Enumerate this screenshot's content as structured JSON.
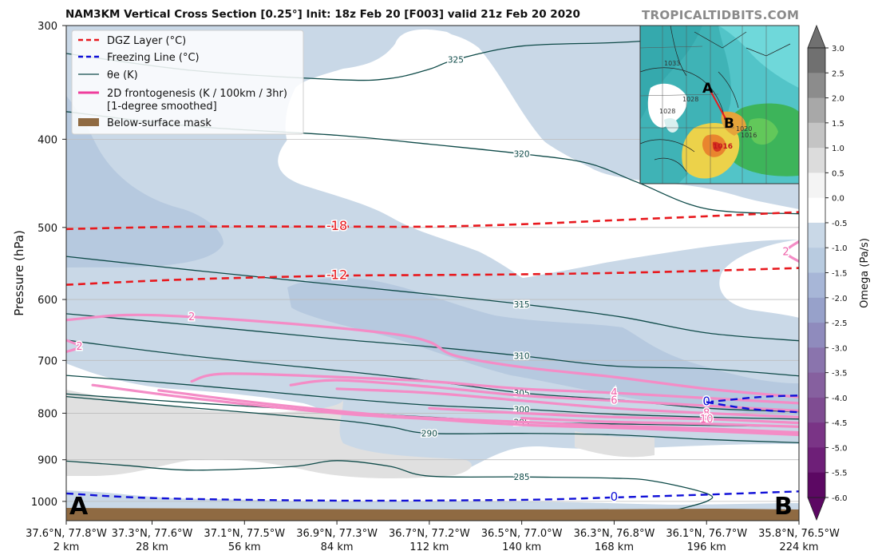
{
  "header": {
    "title": "NAM3KM Vertical Cross Section [0.25°] Init: 18z Feb 20 [F003] valid 21z Feb 20 2020",
    "brand": "TROPICALTIDBITS.COM"
  },
  "chart_data": {
    "type": "cross-section",
    "ylabel": "Pressure (hPa)",
    "y_scale": "log",
    "ylim": [
      1050,
      300
    ],
    "y_ticks": [
      300,
      400,
      500,
      600,
      700,
      800,
      900,
      1000
    ],
    "x_ticks": [
      {
        "coord": "37.6°N, 77.8°W",
        "dist": "2 km",
        "km": 2
      },
      {
        "coord": "37.3°N, 77.6°W",
        "dist": "28 km",
        "km": 28
      },
      {
        "coord": "37.1°N, 77.5°W",
        "dist": "56 km",
        "km": 56
      },
      {
        "coord": "36.9°N, 77.3°W",
        "dist": "84 km",
        "km": 84
      },
      {
        "coord": "36.7°N, 77.2°W",
        "dist": "112 km",
        "km": 112
      },
      {
        "coord": "36.5°N, 77.0°W",
        "dist": "140 km",
        "km": 140
      },
      {
        "coord": "36.3°N, 76.8°W",
        "dist": "168 km",
        "km": 168
      },
      {
        "coord": "36.1°N, 76.7°W",
        "dist": "196 km",
        "km": 196
      },
      {
        "coord": "35.8°N, 76.5°W",
        "dist": "224 km",
        "km": 224
      }
    ],
    "xlim": [
      2,
      224
    ],
    "endpoints": {
      "left": "A",
      "right": "B"
    },
    "legend": {
      "placement": "top-left",
      "items": [
        {
          "label": "DGZ Layer (°C)",
          "style": "dashed",
          "color": "#e8191e"
        },
        {
          "label": "Freezing Line (°C)",
          "style": "dashed",
          "color": "#1010d8"
        },
        {
          "label": "θe (K)",
          "style": "solid",
          "color": "#0e4a48"
        },
        {
          "label": "2D frontogenesis (K / 100km / 3hr)",
          "label2": "[1-degree smoothed]",
          "style": "solid",
          "color": "#ef3d9c"
        },
        {
          "label": "Below-surface mask",
          "style": "patch",
          "color": "#8f6a42"
        }
      ]
    },
    "dgz_lines": [
      {
        "label": "-18",
        "points": [
          [
            2,
            502
          ],
          [
            40,
            499
          ],
          [
            84,
            499
          ],
          [
            112,
            499
          ],
          [
            140,
            496
          ],
          [
            168,
            491
          ],
          [
            196,
            486
          ],
          [
            224,
            481
          ]
        ]
      },
      {
        "label": "-12",
        "points": [
          [
            2,
            578
          ],
          [
            40,
            570
          ],
          [
            84,
            565
          ],
          [
            112,
            564
          ],
          [
            140,
            563
          ],
          [
            168,
            561
          ],
          [
            196,
            558
          ],
          [
            224,
            554
          ]
        ]
      }
    ],
    "freezing_lines": [
      {
        "label": "0",
        "points": [
          [
            2,
            980
          ],
          [
            30,
            992
          ],
          [
            84,
            998
          ],
          [
            140,
            996
          ],
          [
            168,
            990
          ],
          [
            196,
            983
          ],
          [
            224,
            975
          ]
        ]
      },
      {
        "label": "0",
        "points": [
          [
            196,
            778
          ],
          [
            212,
            768
          ],
          [
            224,
            765
          ]
        ]
      },
      {
        "label": "",
        "points": [
          [
            196,
            778
          ],
          [
            210,
            792
          ],
          [
            224,
            798
          ]
        ]
      }
    ],
    "theta_e": [
      {
        "label": "325",
        "points": [
          [
            2,
            322
          ],
          [
            40,
            336
          ],
          [
            84,
            344
          ],
          [
            100,
            343
          ],
          [
            112,
            335
          ],
          [
            120,
            327
          ],
          [
            140,
            316
          ],
          [
            170,
            313
          ],
          [
            200,
            308
          ],
          [
            224,
            303
          ]
        ]
      },
      {
        "label": "320",
        "points": [
          [
            2,
            373
          ],
          [
            40,
            387
          ],
          [
            84,
            396
          ],
          [
            112,
            405
          ],
          [
            140,
            415
          ],
          [
            160,
            425
          ],
          [
            175,
            446
          ],
          [
            196,
            477
          ],
          [
            224,
            483
          ]
        ]
      },
      {
        "label": "315",
        "points": [
          [
            2,
            538
          ],
          [
            40,
            557
          ],
          [
            84,
            578
          ],
          [
            112,
            592
          ],
          [
            140,
            607
          ],
          [
            170,
            627
          ],
          [
            196,
            653
          ],
          [
            224,
            666
          ]
        ]
      },
      {
        "label": "310",
        "points": [
          [
            2,
            622
          ],
          [
            40,
            640
          ],
          [
            84,
            663
          ],
          [
            112,
            676
          ],
          [
            140,
            692
          ],
          [
            168,
            710
          ],
          [
            196,
            715
          ],
          [
            224,
            728
          ]
        ]
      },
      {
        "label": "305",
        "points": [
          [
            2,
            665
          ],
          [
            40,
            692
          ],
          [
            84,
            718
          ],
          [
            112,
            737
          ],
          [
            140,
            760
          ],
          [
            168,
            773
          ],
          [
            196,
            790
          ],
          [
            224,
            797
          ]
        ]
      },
      {
        "label": "300",
        "points": [
          [
            2,
            727
          ],
          [
            40,
            745
          ],
          [
            84,
            770
          ],
          [
            112,
            784
          ],
          [
            140,
            792
          ],
          [
            168,
            802
          ],
          [
            196,
            808
          ],
          [
            224,
            812
          ]
        ]
      },
      {
        "label": "295",
        "points": [
          [
            2,
            762
          ],
          [
            40,
            779
          ],
          [
            84,
            797
          ],
          [
            112,
            808
          ],
          [
            140,
            818
          ],
          [
            168,
            822
          ],
          [
            196,
            825
          ],
          [
            224,
            828
          ]
        ]
      },
      {
        "label": "290",
        "points": [
          [
            2,
            767
          ],
          [
            40,
            789
          ],
          [
            84,
            814
          ],
          [
            100,
            828
          ],
          [
            112,
            842
          ],
          [
            140,
            842
          ],
          [
            168,
            845
          ],
          [
            196,
            855
          ],
          [
            224,
            862
          ]
        ]
      },
      {
        "label": "285",
        "points": [
          [
            2,
            903
          ],
          [
            20,
            913
          ],
          [
            40,
            924
          ],
          [
            70,
            916
          ],
          [
            84,
            902
          ],
          [
            100,
            915
          ],
          [
            112,
            938
          ],
          [
            140,
            940
          ],
          [
            168,
            943
          ],
          [
            180,
            950
          ],
          [
            196,
            980
          ],
          [
            196,
            1000
          ],
          [
            183,
            1030
          ]
        ]
      }
    ],
    "frontogenesis": [
      {
        "label": "2",
        "points": [
          [
            2,
            632
          ],
          [
            20,
            624
          ],
          [
            40,
            627
          ],
          [
            70,
            638
          ],
          [
            100,
            654
          ],
          [
            112,
            668
          ],
          [
            120,
            692
          ],
          [
            140,
            712
          ],
          [
            168,
            730
          ],
          [
            196,
            752
          ],
          [
            224,
            768
          ]
        ]
      },
      {
        "label": "2",
        "points": [
          [
            2,
            665
          ],
          [
            6,
            676
          ],
          [
            2,
            685
          ]
        ]
      },
      {
        "label": "2",
        "points": [
          [
            224,
            545
          ],
          [
            220,
            532
          ],
          [
            224,
            518
          ]
        ]
      },
      {
        "label": "4",
        "points": [
          [
            40,
            738
          ],
          [
            50,
            724
          ],
          [
            84,
            730
          ],
          [
            112,
            738
          ],
          [
            140,
            752
          ],
          [
            168,
            760
          ],
          [
            196,
            770
          ],
          [
            224,
            780
          ]
        ]
      },
      {
        "label": "6",
        "points": [
          [
            70,
            745
          ],
          [
            84,
            736
          ],
          [
            112,
            748
          ],
          [
            140,
            765
          ],
          [
            168,
            775
          ],
          [
            196,
            785
          ],
          [
            224,
            795
          ]
        ]
      },
      {
        "label": "8",
        "points": [
          [
            84,
            752
          ],
          [
            112,
            760
          ],
          [
            140,
            775
          ],
          [
            168,
            790
          ],
          [
            196,
            800
          ],
          [
            224,
            808
          ]
        ]
      },
      {
        "label": "10",
        "points": [
          [
            112,
            790
          ],
          [
            140,
            800
          ],
          [
            168,
            808
          ],
          [
            196,
            812
          ],
          [
            224,
            820
          ]
        ]
      },
      {
        "label": "",
        "points": [
          [
            140,
            810
          ],
          [
            168,
            818
          ],
          [
            196,
            822
          ],
          [
            224,
            828
          ]
        ]
      },
      {
        "label": "",
        "points": [
          [
            10,
            745
          ],
          [
            40,
            770
          ],
          [
            84,
            800
          ],
          [
            112,
            812
          ],
          [
            140,
            824
          ],
          [
            168,
            830
          ],
          [
            196,
            837
          ],
          [
            224,
            845
          ]
        ]
      },
      {
        "label": "",
        "points": [
          [
            30,
            755
          ],
          [
            60,
            779
          ],
          [
            100,
            805
          ],
          [
            140,
            818
          ],
          [
            168,
            826
          ],
          [
            196,
            832
          ],
          [
            224,
            840
          ]
        ]
      }
    ],
    "colorbar": {
      "label": "Omega (Pa/s)",
      "min": -6.0,
      "max": 3.0,
      "ticks": [
        "3.0",
        "2.5",
        "2.0",
        "1.5",
        "1.0",
        "0.5",
        "0.0",
        "-0.5",
        "-1.0",
        "-1.5",
        "-2.0",
        "-2.5",
        "-3.0",
        "-3.5",
        "-4.0",
        "-4.5",
        "-5.0",
        "-5.5",
        "-6.0"
      ],
      "colors": [
        "#707070",
        "#8c8c8c",
        "#a8a8a8",
        "#c4c4c4",
        "#dcdcdc",
        "#f4f4f4",
        "#ffffff",
        "#ffffff",
        "#c9d8e7",
        "#b8cbe0",
        "#a7b6d7",
        "#97a1ca",
        "#8f8bbd",
        "#8a74ad",
        "#86609f",
        "#7f4c92",
        "#7a3486",
        "#6e1f78",
        "#5c0863"
      ]
    },
    "inset": {
      "labels": [
        "A",
        "B"
      ],
      "isobar_labels": [
        "1033",
        "1028",
        "1028",
        "1020",
        "1016",
        "1016"
      ]
    }
  }
}
